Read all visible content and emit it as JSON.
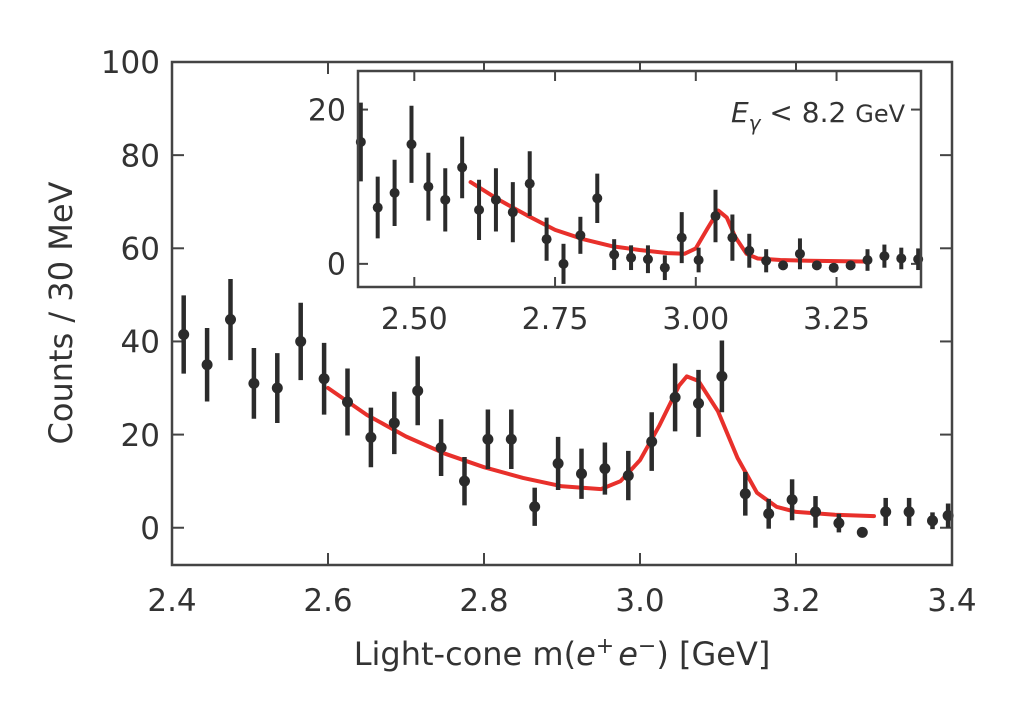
{
  "chart_data": [
    {
      "type": "scatter",
      "title": "",
      "xlabel": "Light-cone m(e⁺e⁻) [GeV]",
      "xlabel_parts": {
        "pre": "Light-cone m(",
        "e1": "e",
        "sup1": "+",
        "e2": "e",
        "sup2": "−",
        "post": ") [GeV]"
      },
      "ylabel": "Counts / 30 MeV",
      "xlim": [
        2.4,
        3.4
      ],
      "ylim": [
        -8,
        100
      ],
      "xticks": [
        "2.4",
        "2.6",
        "2.8",
        "3.0",
        "3.2",
        "3.4"
      ],
      "yticks": [
        "0",
        "20",
        "40",
        "60",
        "80",
        "100"
      ],
      "grid": false,
      "series": [
        {
          "kind": "points-with-errors",
          "color": "#2b2b2b",
          "x": [
            2.415,
            2.445,
            2.475,
            2.505,
            2.535,
            2.565,
            2.595,
            2.625,
            2.655,
            2.685,
            2.715,
            2.745,
            2.775,
            2.805,
            2.835,
            2.865,
            2.895,
            2.925,
            2.955,
            2.985,
            3.015,
            3.045,
            3.075,
            3.105,
            3.135,
            3.165,
            3.195,
            3.225,
            3.255,
            3.285,
            3.315,
            3.345,
            3.375,
            3.395
          ],
          "y": [
            41.5,
            35,
            44.7,
            31,
            30,
            40,
            32,
            27,
            19.4,
            22.5,
            29.4,
            17.2,
            10,
            19,
            19,
            4.5,
            13.8,
            11.6,
            12.7,
            11.2,
            18.5,
            28,
            26.7,
            32.5,
            7.3,
            3,
            6,
            3.4,
            1,
            -1,
            3.4,
            3.4,
            1.5,
            2.6
          ],
          "yerr": [
            8.4,
            7.9,
            8.7,
            7.6,
            7.5,
            8.3,
            7.7,
            7.2,
            6.4,
            6.7,
            7.4,
            6.1,
            5.2,
            6.4,
            6.4,
            4.1,
            5.7,
            5.4,
            5.6,
            5.3,
            6.3,
            7.3,
            7.2,
            7.7,
            4.7,
            3.2,
            4.4,
            3.4,
            2.0,
            0.8,
            3.0,
            3.0,
            1.8,
            2.6
          ]
        },
        {
          "kind": "fit-curve",
          "color": "#e8302b",
          "x": [
            2.6,
            2.65,
            2.7,
            2.75,
            2.8,
            2.85,
            2.9,
            2.95,
            2.975,
            3.0,
            3.025,
            3.05,
            3.06,
            3.075,
            3.1,
            3.125,
            3.15,
            3.175,
            3.2,
            3.25,
            3.3
          ],
          "y": [
            30.0,
            24.2,
            19.6,
            15.9,
            13.0,
            10.7,
            8.9,
            8.3,
            10.0,
            14.5,
            22,
            30.5,
            32.5,
            31.5,
            25,
            15,
            7.5,
            4.5,
            3.4,
            2.8,
            2.5
          ]
        }
      ]
    },
    {
      "type": "scatter",
      "role": "inset",
      "annotation": {
        "e": "E",
        "sub": "γ",
        "rest": " < 8.2 ",
        "unit": "GeV"
      },
      "xlim": [
        2.4,
        3.4
      ],
      "ylim": [
        -3,
        25
      ],
      "xticks": [
        "2.50",
        "2.75",
        "3.00",
        "3.25"
      ],
      "yticks": [
        "0",
        "20"
      ],
      "grid": false,
      "series": [
        {
          "kind": "points-with-errors",
          "color": "#2b2b2b",
          "x": [
            2.405,
            2.435,
            2.465,
            2.495,
            2.525,
            2.555,
            2.585,
            2.615,
            2.645,
            2.675,
            2.705,
            2.735,
            2.765,
            2.795,
            2.825,
            2.855,
            2.885,
            2.915,
            2.945,
            2.975,
            3.005,
            3.035,
            3.065,
            3.095,
            3.125,
            3.155,
            3.185,
            3.215,
            3.245,
            3.275,
            3.305,
            3.335,
            3.365,
            3.395
          ],
          "y": [
            15.8,
            7.3,
            9.2,
            15.5,
            10.0,
            8.3,
            12.5,
            7.0,
            8.3,
            6.7,
            10.4,
            3.2,
            0,
            3.7,
            8.5,
            1.2,
            0.8,
            0.6,
            -0.5,
            3.4,
            0.5,
            6.2,
            3.4,
            1.7,
            0.4,
            -0.2,
            1.3,
            -0.2,
            -0.5,
            -0.2,
            0.5,
            1.0,
            0.7,
            0.6
          ],
          "yerr": [
            5.1,
            4.0,
            4.3,
            5.0,
            4.4,
            4.1,
            4.0,
            3.9,
            4.1,
            3.9,
            4.2,
            2.8,
            2.6,
            2.4,
            3.2,
            2.0,
            1.6,
            1.8,
            1.6,
            3.3,
            1.6,
            3.4,
            3.0,
            2.2,
            1.5,
            0.5,
            2.0,
            0.5,
            0.5,
            0.5,
            1.4,
            1.5,
            1.4,
            1.4
          ]
        },
        {
          "kind": "fit-curve",
          "color": "#e8302b",
          "x": [
            2.6,
            2.65,
            2.7,
            2.75,
            2.8,
            2.85,
            2.9,
            2.95,
            2.98,
            3.0,
            3.02,
            3.04,
            3.055,
            3.07,
            3.09,
            3.11,
            3.15,
            3.2,
            3.3
          ],
          "y": [
            10.6,
            8.3,
            6.3,
            4.4,
            3.2,
            2.3,
            1.8,
            1.4,
            1.3,
            2.0,
            4.5,
            6.9,
            6.0,
            3.5,
            1.3,
            0.7,
            0.5,
            0.4,
            0.3
          ]
        }
      ]
    }
  ]
}
